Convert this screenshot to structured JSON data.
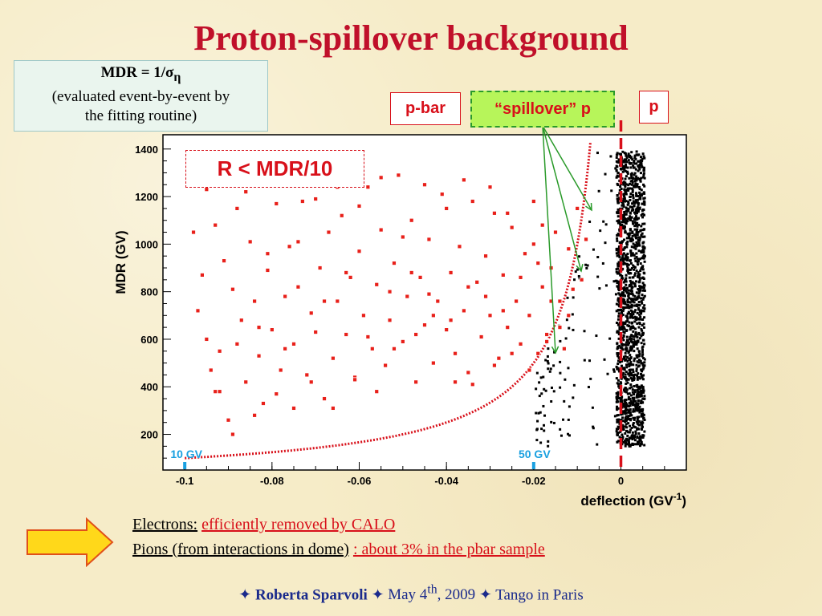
{
  "slide": {
    "title": "Proton-spillover background",
    "mdr_box": {
      "line1_prefix": "MDR = 1/σ",
      "line1_sub": "η",
      "line2": "(evaluated event-by-event by",
      "line3": "the fitting routine)"
    },
    "labels": {
      "pbar": "p-bar",
      "spillover": "“spillover” p",
      "p": "p",
      "cut": "R < MDR/10",
      "gv10": "10 GV",
      "gv50": "50 GV"
    },
    "bottom": {
      "line1_a": "Electrons:",
      "line1_b": "efficiently removed by CALO",
      "line2_a": "Pions (from interactions in dome)",
      "line2_b": ": about 3% in the pbar sample"
    },
    "footer": {
      "star": "✦",
      "author": "Roberta Sparvoli",
      "date_pre": "May 4",
      "date_sup": "th",
      "date_post": ", 2009",
      "event": "Tango in Paris"
    },
    "colors": {
      "title": "#c0102a",
      "red": "#d8101a",
      "green": "#2a9a2a",
      "blue_label": "#1aa0e0"
    }
  },
  "chart_data": {
    "type": "scatter",
    "xlabel": "deflection (GV",
    "xlabel_sup": "-1",
    "xlabel_end": ")",
    "ylabel": "MDR (GV)",
    "xlim": [
      -0.105,
      0.015
    ],
    "ylim": [
      50,
      1460
    ],
    "xticks": [
      -0.1,
      -0.08,
      -0.06,
      -0.04,
      -0.02,
      0
    ],
    "xtick_labels": [
      "-0.1",
      "-0.08",
      "-0.06",
      "-0.04",
      "-0.02",
      "0"
    ],
    "yticks": [
      200,
      400,
      600,
      800,
      1000,
      1200,
      1400
    ],
    "ytick_labels": [
      "200",
      "400",
      "600",
      "800",
      "1000",
      "1200",
      "1400"
    ],
    "curve": {
      "name": "R < MDR/10 boundary",
      "formula": "MDR = 10 / |deflection|",
      "style": "red dotted"
    },
    "vertical_line": {
      "x": 0,
      "style": "red dashed"
    },
    "series": [
      {
        "name": "p-bar",
        "color": "#d8101a",
        "points": [
          [
            -0.098,
            1050
          ],
          [
            -0.097,
            720
          ],
          [
            -0.096,
            870
          ],
          [
            -0.095,
            600
          ],
          [
            -0.094,
            470
          ],
          [
            -0.093,
            380
          ],
          [
            -0.092,
            550
          ],
          [
            -0.091,
            930
          ],
          [
            -0.09,
            260
          ],
          [
            -0.089,
            810
          ],
          [
            -0.088,
            1150
          ],
          [
            -0.087,
            680
          ],
          [
            -0.086,
            420
          ],
          [
            -0.085,
            1010
          ],
          [
            -0.084,
            760
          ],
          [
            -0.083,
            530
          ],
          [
            -0.082,
            330
          ],
          [
            -0.081,
            890
          ],
          [
            -0.08,
            640
          ],
          [
            -0.079,
            1170
          ],
          [
            -0.078,
            470
          ],
          [
            -0.077,
            780
          ],
          [
            -0.076,
            990
          ],
          [
            -0.075,
            580
          ],
          [
            -0.074,
            820
          ],
          [
            -0.073,
            1180
          ],
          [
            -0.072,
            450
          ],
          [
            -0.071,
            710
          ],
          [
            -0.07,
            630
          ],
          [
            -0.069,
            900
          ],
          [
            -0.068,
            350
          ],
          [
            -0.067,
            1050
          ],
          [
            -0.066,
            520
          ],
          [
            -0.065,
            760
          ],
          [
            -0.064,
            1120
          ],
          [
            -0.063,
            620
          ],
          [
            -0.062,
            860
          ],
          [
            -0.061,
            440
          ],
          [
            -0.06,
            970
          ],
          [
            -0.059,
            700
          ],
          [
            -0.058,
            1240
          ],
          [
            -0.057,
            560
          ],
          [
            -0.056,
            830
          ],
          [
            -0.055,
            1060
          ],
          [
            -0.054,
            490
          ],
          [
            -0.053,
            680
          ],
          [
            -0.052,
            920
          ],
          [
            -0.051,
            1290
          ],
          [
            -0.05,
            590
          ],
          [
            -0.049,
            780
          ],
          [
            -0.048,
            1100
          ],
          [
            -0.047,
            420
          ],
          [
            -0.046,
            860
          ],
          [
            -0.045,
            660
          ],
          [
            -0.044,
            1020
          ],
          [
            -0.043,
            500
          ],
          [
            -0.042,
            760
          ],
          [
            -0.041,
            1210
          ],
          [
            -0.04,
            640
          ],
          [
            -0.039,
            880
          ],
          [
            -0.038,
            540
          ],
          [
            -0.037,
            990
          ],
          [
            -0.036,
            720
          ],
          [
            -0.035,
            460
          ],
          [
            -0.034,
            1180
          ],
          [
            -0.033,
            840
          ],
          [
            -0.032,
            610
          ],
          [
            -0.031,
            950
          ],
          [
            -0.03,
            700
          ],
          [
            -0.029,
            1130
          ],
          [
            -0.028,
            520
          ],
          [
            -0.027,
            870
          ],
          [
            -0.026,
            650
          ],
          [
            -0.025,
            1070
          ],
          [
            -0.024,
            760
          ],
          [
            -0.023,
            580
          ],
          [
            -0.022,
            960
          ],
          [
            -0.021,
            700
          ],
          [
            -0.02,
            1000
          ],
          [
            -0.019,
            540
          ],
          [
            -0.018,
            820
          ],
          [
            -0.017,
            620
          ],
          [
            -0.016,
            900
          ],
          [
            -0.015,
            1050
          ],
          [
            -0.014,
            760
          ],
          [
            -0.013,
            560
          ],
          [
            -0.012,
            980
          ],
          [
            -0.011,
            810
          ],
          [
            -0.01,
            1150
          ],
          [
            -0.095,
            1230
          ],
          [
            -0.092,
            380
          ],
          [
            -0.088,
            580
          ],
          [
            -0.084,
            280
          ],
          [
            -0.079,
            370
          ],
          [
            -0.075,
            310
          ],
          [
            -0.071,
            420
          ],
          [
            -0.066,
            310
          ],
          [
            -0.061,
            430
          ],
          [
            -0.056,
            380
          ],
          [
            -0.052,
            560
          ],
          [
            -0.047,
            620
          ],
          [
            -0.043,
            700
          ],
          [
            -0.038,
            420
          ],
          [
            -0.034,
            410
          ],
          [
            -0.029,
            490
          ],
          [
            -0.025,
            540
          ],
          [
            -0.021,
            470
          ],
          [
            -0.017,
            590
          ],
          [
            -0.014,
            650
          ],
          [
            -0.012,
            700
          ],
          [
            -0.009,
            850
          ],
          [
            -0.008,
            1020
          ],
          [
            -0.083,
            650
          ],
          [
            -0.077,
            560
          ],
          [
            -0.068,
            760
          ],
          [
            -0.063,
            880
          ],
          [
            -0.058,
            610
          ],
          [
            -0.053,
            800
          ],
          [
            -0.048,
            880
          ],
          [
            -0.044,
            790
          ],
          [
            -0.039,
            680
          ],
          [
            -0.035,
            820
          ],
          [
            -0.031,
            780
          ],
          [
            -0.027,
            720
          ],
          [
            -0.023,
            860
          ],
          [
            -0.019,
            920
          ],
          [
            -0.016,
            760
          ],
          [
            -0.089,
            200
          ],
          [
            -0.081,
            960
          ],
          [
            -0.07,
            1190
          ],
          [
            -0.06,
            1160
          ],
          [
            -0.05,
            1030
          ],
          [
            -0.04,
            1150
          ],
          [
            -0.03,
            1240
          ],
          [
            -0.02,
            1180
          ],
          [
            -0.093,
            1080
          ],
          [
            -0.086,
            1220
          ],
          [
            -0.074,
            1010
          ],
          [
            -0.065,
            1240
          ],
          [
            -0.055,
            1280
          ],
          [
            -0.045,
            1250
          ],
          [
            -0.036,
            1270
          ],
          [
            -0.026,
            1130
          ],
          [
            -0.018,
            1080
          ]
        ]
      },
      {
        "name": "p",
        "color": "#000000",
        "distribution": "dense vertical band at deflection ~0.000 to 0.005 spanning MDR 150 to 1390, plus sparse points spreading to -0.02 at low MDR"
      }
    ],
    "annotations": [
      "10 GV",
      "50 GV",
      "R < MDR/10",
      "p-bar",
      "“spillover” p",
      "p"
    ]
  }
}
